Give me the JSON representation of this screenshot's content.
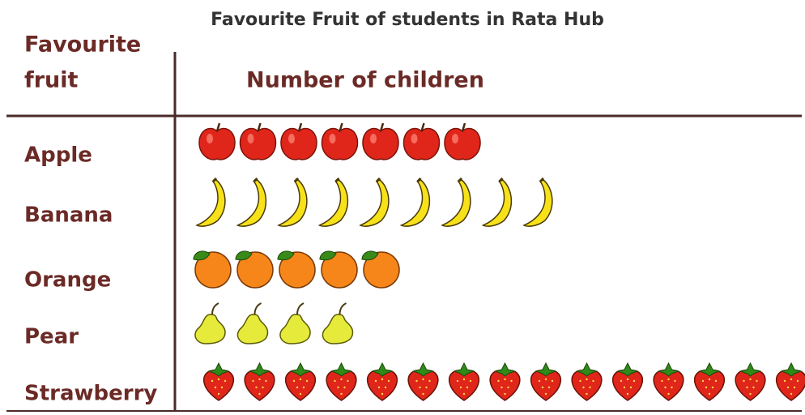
{
  "chart_data": {
    "type": "pictograph",
    "title": "Favourite Fruit of students in Rata Hub",
    "category_header": [
      "Favourite",
      "fruit"
    ],
    "value_header": "Number of children",
    "categories": [
      "Apple",
      "Banana",
      "Orange",
      "Pear",
      "Strawberry"
    ],
    "values": [
      7,
      9,
      5,
      4,
      15
    ],
    "colors": [
      "#e0261a",
      "#f7e21a",
      "#f7861a",
      "#e6ea3a",
      "#e0261a"
    ]
  }
}
